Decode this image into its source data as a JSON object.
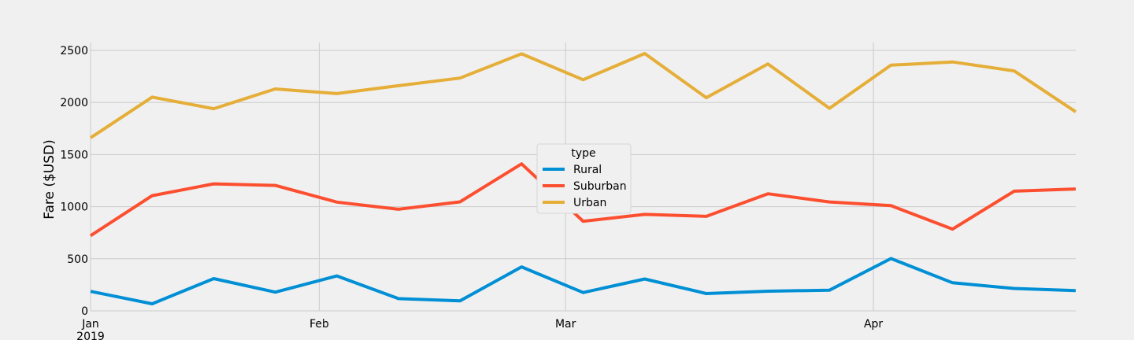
{
  "chart_data": {
    "type": "line",
    "title": "",
    "xlabel": "",
    "ylabel": "Fare ($USD)",
    "ylim": [
      0,
      2600
    ],
    "grid": true,
    "x": [
      "2019-01-06",
      "2019-01-13",
      "2019-01-20",
      "2019-01-27",
      "2019-02-03",
      "2019-02-10",
      "2019-02-17",
      "2019-02-24",
      "2019-03-03",
      "2019-03-10",
      "2019-03-17",
      "2019-03-24",
      "2019-03-31",
      "2019-04-07",
      "2019-04-14",
      "2019-04-21",
      "2019-04-28"
    ],
    "xlim": [
      "2019-01-06",
      "2019-04-28"
    ],
    "yticks": [
      0,
      500,
      1000,
      1500,
      2000,
      2500
    ],
    "xticks": [
      {
        "date": "2019-01-06",
        "label": "Jan",
        "sublabel": "2019"
      },
      {
        "date": "2019-02-01",
        "label": "Feb",
        "sublabel": ""
      },
      {
        "date": "2019-03-01",
        "label": "Mar",
        "sublabel": ""
      },
      {
        "date": "2019-04-05",
        "label": "Apr",
        "sublabel": ""
      }
    ],
    "legend": {
      "title": "type",
      "position": "center"
    },
    "series": [
      {
        "name": "Rural",
        "color": "#008fd5",
        "values": [
          187,
          68,
          310,
          180,
          335,
          118,
          96,
          422,
          176,
          306,
          166,
          189,
          199,
          502,
          270,
          215,
          194
        ]
      },
      {
        "name": "Suburban",
        "color": "#fc4f30",
        "values": [
          722,
          1106,
          1219,
          1204,
          1044,
          975,
          1046,
          1411,
          860,
          926,
          907,
          1124,
          1045,
          1010,
          785,
          1149,
          1170
        ]
      },
      {
        "name": "Urban",
        "color": "#e5ae38",
        "values": [
          1661,
          2051,
          1940,
          2130,
          2085,
          2161,
          2234,
          2467,
          2218,
          2470,
          2046,
          2370,
          1944,
          2358,
          2389,
          2303,
          1910
        ]
      }
    ]
  }
}
